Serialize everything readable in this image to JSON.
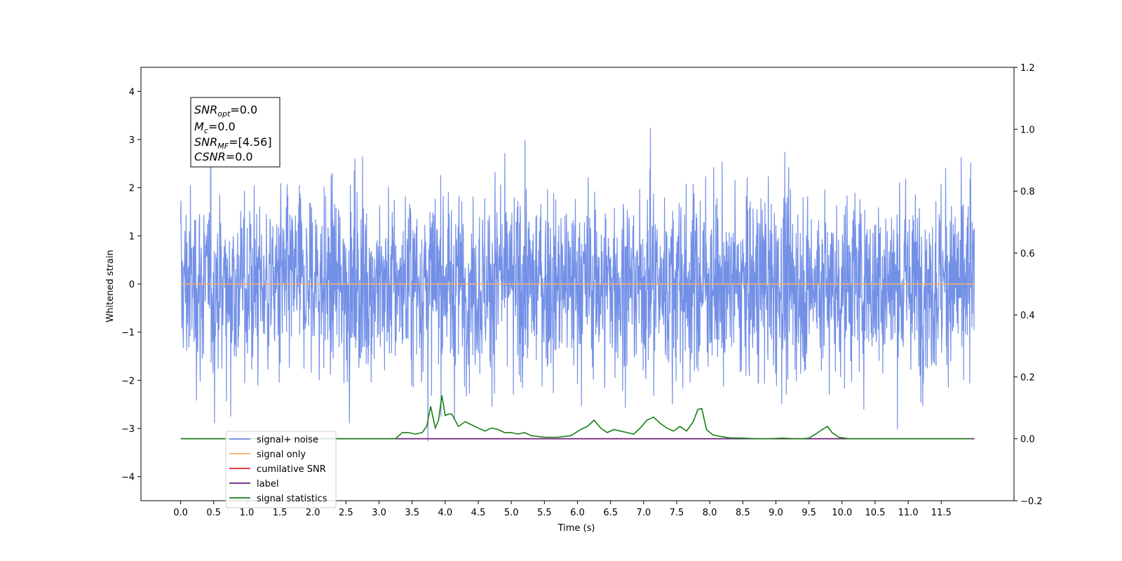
{
  "chart_data": {
    "type": "line",
    "xlabel": "Time (s)",
    "ylabel": "Whitened strain",
    "xlim": [
      -0.6,
      12.6
    ],
    "ylim": [
      -4.5,
      4.5
    ],
    "y2lim": [
      -0.2,
      1.2
    ],
    "x_ticks": [
      "0.0",
      "0.5",
      "1.0",
      "1.5",
      "2.0",
      "2.5",
      "3.0",
      "3.5",
      "4.0",
      "4.5",
      "5.0",
      "5.5",
      "6.0",
      "6.5",
      "7.0",
      "7.5",
      "8.0",
      "8.5",
      "9.0",
      "9.5",
      "10.0",
      "10.5",
      "11.0",
      "11.5"
    ],
    "y_ticks": [
      "−4",
      "−3",
      "−2",
      "−1",
      "0",
      "1",
      "2",
      "3",
      "4"
    ],
    "y2_ticks": [
      "−0.2",
      "0.0",
      "0.2",
      "0.4",
      "0.6",
      "0.8",
      "1.0",
      "1.2"
    ],
    "grid": false,
    "legend_position": "lower-left",
    "stats_box": [
      {
        "sym": "SNR",
        "sub": "opt",
        "value": "=0.0"
      },
      {
        "sym": "M",
        "sub": "c",
        "value": "=0.0"
      },
      {
        "sym": "SNR",
        "sub": "MF",
        "value": "=[4.56]"
      },
      {
        "sym": "CSNR",
        "sub": "",
        "value": "=0.0"
      }
    ],
    "series": [
      {
        "name": "signal+ noise",
        "color": "#6c8ae6",
        "axis": "left",
        "description_kind": "noise",
        "x_range": [
          0.0,
          12.0
        ],
        "std": 0.95
      },
      {
        "name": "signal only",
        "color": "#f5b06a",
        "axis": "left",
        "x": [
          0.0,
          12.0
        ],
        "values": [
          0.0,
          0.0
        ]
      },
      {
        "name": "cumilative SNR",
        "color": "#e8201f",
        "axis": "right",
        "x": [
          0.0,
          12.0
        ],
        "values": [
          0.0,
          0.0
        ]
      },
      {
        "name": "label",
        "color": "#6a1d7a",
        "axis": "right",
        "x": [
          0.0,
          12.0
        ],
        "values": [
          0.0,
          0.0
        ]
      },
      {
        "name": "signal statistics",
        "color": "#168016",
        "axis": "right",
        "x": [
          0.0,
          0.5,
          1.0,
          1.5,
          2.0,
          2.5,
          3.0,
          3.25,
          3.35,
          3.45,
          3.55,
          3.65,
          3.72,
          3.78,
          3.85,
          3.9,
          3.95,
          4.0,
          4.05,
          4.1,
          4.2,
          4.3,
          4.4,
          4.5,
          4.6,
          4.7,
          4.8,
          4.9,
          5.0,
          5.1,
          5.2,
          5.3,
          5.5,
          5.7,
          5.9,
          6.05,
          6.15,
          6.25,
          6.35,
          6.45,
          6.55,
          6.65,
          6.75,
          6.85,
          6.95,
          7.05,
          7.15,
          7.25,
          7.35,
          7.45,
          7.55,
          7.65,
          7.75,
          7.82,
          7.88,
          7.95,
          8.05,
          8.15,
          8.3,
          8.5,
          8.7,
          8.9,
          9.1,
          9.3,
          9.4,
          9.5,
          9.6,
          9.7,
          9.78,
          9.85,
          9.95,
          10.1,
          10.5,
          11.0,
          11.5,
          11.95
        ],
        "values": [
          0.0,
          0.0,
          0.0,
          0.0,
          0.0,
          0.0,
          0.0,
          0.0,
          0.02,
          0.02,
          0.015,
          0.02,
          0.04,
          0.105,
          0.035,
          0.06,
          0.14,
          0.075,
          0.08,
          0.08,
          0.04,
          0.055,
          0.045,
          0.035,
          0.025,
          0.035,
          0.03,
          0.02,
          0.02,
          0.015,
          0.02,
          0.01,
          0.005,
          0.005,
          0.01,
          0.03,
          0.04,
          0.06,
          0.035,
          0.02,
          0.03,
          0.025,
          0.02,
          0.015,
          0.035,
          0.06,
          0.07,
          0.05,
          0.035,
          0.025,
          0.04,
          0.025,
          0.055,
          0.095,
          0.098,
          0.03,
          0.012,
          0.008,
          0.003,
          0.002,
          0.0,
          0.0,
          0.002,
          0.0,
          0.0,
          0.002,
          0.015,
          0.03,
          0.04,
          0.02,
          0.005,
          0.0,
          0.0,
          0.0,
          0.0,
          0.0
        ]
      }
    ]
  }
}
